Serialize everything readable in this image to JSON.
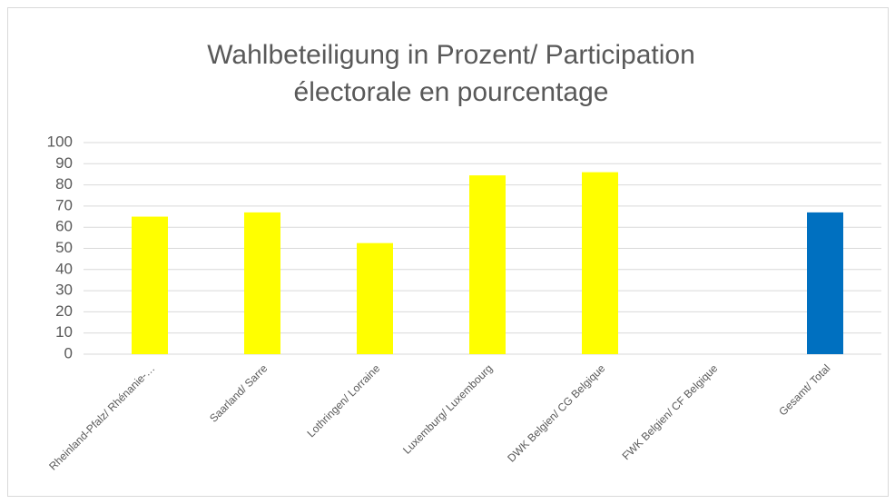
{
  "chart_data": {
    "type": "bar",
    "title": [
      "Wahlbeteiligung in Prozent/ Participation",
      "électorale en pourcentage"
    ],
    "categories": [
      "Rheinland-Pfalz/ Rhénanie-…",
      "Saarland/ Sarre",
      "Lothringen/ Lorraine",
      "Luxemburg/ Luxembourg",
      "DWK Belgien/ CG Belgique",
      "FWK Belgien/ CF Belgique",
      "Gesamt/ Total"
    ],
    "values": [
      65,
      67,
      52.5,
      84.5,
      86,
      null,
      67
    ],
    "colors": [
      "#ffff00",
      "#ffff00",
      "#ffff00",
      "#ffff00",
      "#ffff00",
      "#ffff00",
      "#0070c0"
    ],
    "ylim": [
      0,
      100
    ],
    "yticks": [
      0,
      10,
      20,
      30,
      40,
      50,
      60,
      70,
      80,
      90,
      100
    ],
    "grid": true
  }
}
